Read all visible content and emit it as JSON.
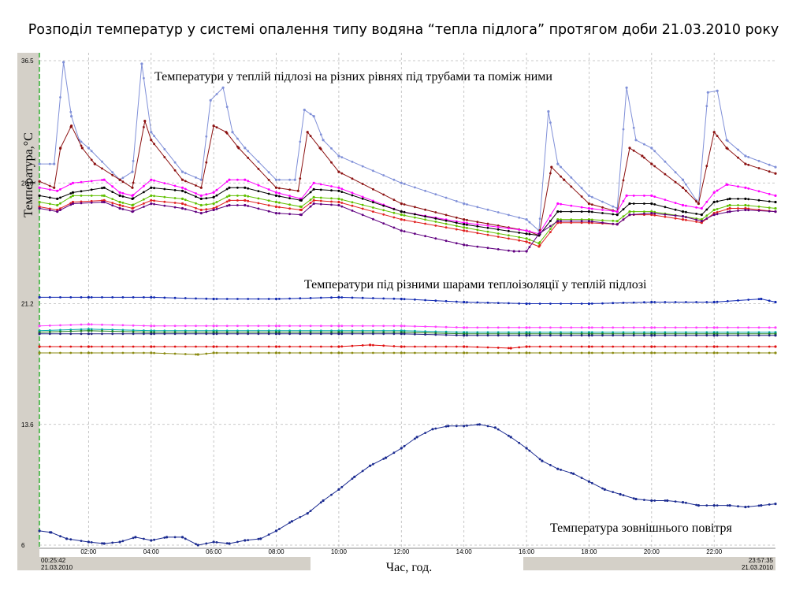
{
  "title": "Розподіл температур у системі опалення типу водяна “тепла підлога” протягом доби 21.03.2010 року",
  "chart_data": {
    "type": "line",
    "ylabel": "Температура,°С",
    "xlabel": "Час, год.",
    "ylim": [
      6,
      36.5
    ],
    "xlim": [
      0.4283,
      23.9597
    ],
    "y_ticks": [
      "36.5",
      "28.8",
      "21.2",
      "13.6",
      "6"
    ],
    "x_ticks": [
      "02:00",
      "04:00",
      "06:00",
      "08:00",
      "10:00",
      "12:00",
      "14:00",
      "16:00",
      "18:00",
      "20:00",
      "22:00"
    ],
    "grid": true,
    "start_label": {
      "time": "00:25:42",
      "date": "21.03.2010"
    },
    "end_label": {
      "time": "23:57:35",
      "date": "21.03.2010"
    },
    "annotations": {
      "floor": "Температури у теплій підлозі на різних рівнях під трубами та поміж ними",
      "insulation": "Температури під різними шарами теплоізоляції у теплій підлозі",
      "outdoor": "Температура зовнішнього повітря"
    },
    "series": [
      {
        "color": "#8090d8",
        "x": [
          0.43,
          0.9,
          1.2,
          1.45,
          1.7,
          2.0,
          3.0,
          3.4,
          3.7,
          4.0,
          5.0,
          5.6,
          5.9,
          6.3,
          6.6,
          7.0,
          8.0,
          8.6,
          8.9,
          9.2,
          9.5,
          10.0,
          12.0,
          14.0,
          16.0,
          16.4,
          16.7,
          17.0,
          18.0,
          18.9,
          19.2,
          19.5,
          20.0,
          21.0,
          21.5,
          21.8,
          22.1,
          22.4,
          23.0,
          23.96
        ],
        "values": [
          30.0,
          30.0,
          36.4,
          33.0,
          31.5,
          31.0,
          29.0,
          29.5,
          36.3,
          32.0,
          29.5,
          29.0,
          34.0,
          34.8,
          32.0,
          31.0,
          29.0,
          29.0,
          33.4,
          33.0,
          31.5,
          30.5,
          28.8,
          27.5,
          26.5,
          25.8,
          33.3,
          30.0,
          28.0,
          27.2,
          34.8,
          31.5,
          31.0,
          29.0,
          27.5,
          34.5,
          34.6,
          31.5,
          30.5,
          29.8
        ]
      },
      {
        "color": "#8b1010",
        "x": [
          0.43,
          0.9,
          1.1,
          1.45,
          1.8,
          2.2,
          3.0,
          3.4,
          3.8,
          4.0,
          5.0,
          5.6,
          6.0,
          6.4,
          6.8,
          8.0,
          8.7,
          9.0,
          9.4,
          10.0,
          12.0,
          14.0,
          16.0,
          16.4,
          16.8,
          17.2,
          18.0,
          18.9,
          19.3,
          19.7,
          20.0,
          21.0,
          21.5,
          22.0,
          22.4,
          23.0,
          23.96
        ],
        "values": [
          28.9,
          28.5,
          31.0,
          32.4,
          31.0,
          30.0,
          29.0,
          28.5,
          32.7,
          31.5,
          29.0,
          28.5,
          32.4,
          32.0,
          31.0,
          28.5,
          28.3,
          32.0,
          31.0,
          29.5,
          27.5,
          26.5,
          25.8,
          25.5,
          29.8,
          29.0,
          27.5,
          27.0,
          31.0,
          30.5,
          30.0,
          28.5,
          27.5,
          32.0,
          31.0,
          30.0,
          29.4
        ]
      },
      {
        "color": "#ff00ff",
        "x": [
          0.43,
          1.0,
          1.5,
          2.5,
          3.0,
          3.4,
          4.0,
          5.0,
          5.6,
          6.0,
          6.5,
          7.0,
          8.0,
          8.8,
          9.2,
          10.0,
          12.0,
          14.0,
          16.0,
          16.4,
          17.0,
          18.0,
          18.9,
          19.2,
          20.0,
          21.0,
          21.6,
          22.0,
          22.4,
          23.0,
          23.96
        ],
        "values": [
          28.5,
          28.3,
          28.8,
          29.0,
          28.2,
          28.0,
          29.0,
          28.5,
          28.0,
          28.2,
          29.0,
          29.0,
          28.2,
          27.8,
          28.8,
          28.5,
          27.0,
          26.3,
          25.8,
          25.6,
          27.5,
          27.2,
          27.0,
          28.0,
          28.0,
          27.4,
          27.2,
          28.2,
          28.7,
          28.5,
          28.0
        ]
      },
      {
        "color": "#000000",
        "x": [
          0.43,
          1.0,
          1.5,
          2.5,
          3.0,
          3.4,
          4.0,
          5.0,
          5.6,
          6.0,
          6.5,
          7.0,
          8.0,
          8.8,
          9.2,
          10.0,
          12.0,
          14.0,
          16.0,
          16.4,
          17.0,
          18.0,
          18.9,
          19.3,
          20.0,
          21.0,
          21.6,
          22.0,
          22.5,
          23.0,
          23.96
        ],
        "values": [
          28.0,
          27.8,
          28.2,
          28.5,
          28.0,
          27.8,
          28.5,
          28.3,
          27.8,
          27.9,
          28.5,
          28.5,
          28.0,
          27.7,
          28.4,
          28.3,
          27.0,
          26.2,
          25.6,
          25.5,
          27.0,
          27.0,
          26.8,
          27.5,
          27.5,
          27.0,
          26.8,
          27.6,
          27.8,
          27.8,
          27.6
        ]
      },
      {
        "color": "#60c000",
        "x": [
          0.43,
          1.0,
          1.5,
          2.5,
          3.0,
          3.4,
          4.0,
          5.0,
          5.6,
          6.0,
          6.5,
          7.0,
          8.0,
          8.8,
          9.2,
          10.0,
          12.0,
          14.0,
          16.0,
          16.4,
          17.0,
          18.0,
          18.9,
          19.3,
          20.0,
          21.0,
          21.6,
          22.0,
          22.5,
          23.0,
          23.96
        ],
        "values": [
          27.6,
          27.4,
          28.0,
          28.0,
          27.6,
          27.4,
          28.0,
          27.8,
          27.4,
          27.5,
          28.0,
          28.0,
          27.6,
          27.3,
          27.9,
          27.8,
          26.8,
          26.0,
          25.3,
          25.0,
          26.5,
          26.5,
          26.4,
          27.0,
          27.0,
          26.7,
          26.5,
          27.1,
          27.4,
          27.4,
          27.2
        ]
      },
      {
        "color": "#e02020",
        "x": [
          0.43,
          1.0,
          1.5,
          2.5,
          3.0,
          3.4,
          4.0,
          5.0,
          5.6,
          6.0,
          6.5,
          7.0,
          8.0,
          8.8,
          9.2,
          10.0,
          12.0,
          14.0,
          16.0,
          16.4,
          17.0,
          18.0,
          18.9,
          19.3,
          20.0,
          21.0,
          21.6,
          22.0,
          22.5,
          23.0,
          23.96
        ],
        "values": [
          27.3,
          27.1,
          27.6,
          27.7,
          27.4,
          27.2,
          27.7,
          27.5,
          27.1,
          27.2,
          27.7,
          27.7,
          27.3,
          27.1,
          27.7,
          27.6,
          26.5,
          25.8,
          25.1,
          24.8,
          26.3,
          26.3,
          26.2,
          26.8,
          26.8,
          26.5,
          26.3,
          26.9,
          27.2,
          27.2,
          27.0
        ]
      },
      {
        "color": "#600080",
        "x": [
          0.43,
          1.0,
          1.5,
          2.5,
          3.0,
          3.4,
          4.0,
          5.0,
          5.6,
          6.0,
          6.5,
          7.0,
          8.0,
          8.8,
          9.2,
          10.0,
          12.0,
          14.0,
          15.6,
          16.0,
          16.4,
          17.0,
          18.0,
          18.9,
          19.3,
          20.0,
          21.0,
          21.6,
          22.0,
          22.5,
          23.0,
          23.96
        ],
        "values": [
          27.2,
          27.0,
          27.5,
          27.6,
          27.2,
          27.0,
          27.5,
          27.2,
          26.9,
          27.1,
          27.4,
          27.4,
          26.9,
          26.8,
          27.5,
          27.4,
          25.8,
          24.9,
          24.5,
          24.5,
          25.6,
          26.4,
          26.4,
          26.2,
          26.8,
          26.9,
          26.7,
          26.4,
          26.8,
          27.0,
          27.1,
          27.0
        ]
      },
      {
        "color": "#1028b0",
        "x": [
          0.43,
          2.0,
          4.0,
          6.0,
          8.0,
          10.0,
          12.0,
          14.0,
          16.0,
          18.0,
          20.0,
          22.0,
          23.5,
          23.96
        ],
        "values": [
          21.6,
          21.6,
          21.6,
          21.5,
          21.5,
          21.6,
          21.5,
          21.3,
          21.2,
          21.2,
          21.3,
          21.3,
          21.5,
          21.3
        ]
      },
      {
        "color": "#ff40ff",
        "x": [
          0.43,
          2.0,
          4.0,
          6.0,
          8.0,
          10.0,
          12.0,
          14.0,
          16.0,
          18.0,
          20.0,
          22.0,
          23.96
        ],
        "values": [
          19.8,
          19.9,
          19.8,
          19.8,
          19.8,
          19.8,
          19.8,
          19.7,
          19.7,
          19.7,
          19.7,
          19.7,
          19.7
        ]
      },
      {
        "color": "#00a8a8",
        "x": [
          0.43,
          2.0,
          4.0,
          6.0,
          8.0,
          10.0,
          12.0,
          14.0,
          16.0,
          18.0,
          20.0,
          22.0,
          23.96
        ],
        "values": [
          19.5,
          19.6,
          19.5,
          19.5,
          19.5,
          19.5,
          19.5,
          19.4,
          19.4,
          19.4,
          19.4,
          19.4,
          19.4
        ]
      },
      {
        "color": "#208020",
        "x": [
          0.43,
          2.0,
          4.0,
          6.0,
          8.0,
          10.0,
          12.0,
          14.0,
          16.0,
          18.0,
          20.0,
          22.0,
          23.96
        ],
        "values": [
          19.4,
          19.5,
          19.4,
          19.4,
          19.4,
          19.4,
          19.4,
          19.3,
          19.3,
          19.3,
          19.3,
          19.3,
          19.3
        ]
      },
      {
        "color": "#202080",
        "x": [
          0.43,
          2.0,
          4.0,
          6.0,
          8.0,
          10.0,
          12.0,
          14.0,
          16.0,
          18.0,
          20.0,
          22.0,
          23.96
        ],
        "values": [
          19.3,
          19.3,
          19.3,
          19.3,
          19.3,
          19.3,
          19.3,
          19.2,
          19.2,
          19.2,
          19.2,
          19.2,
          19.2
        ]
      },
      {
        "color": "#e01010",
        "x": [
          0.43,
          2.0,
          4.0,
          6.0,
          8.0,
          10.0,
          11.0,
          12.0,
          14.0,
          15.5,
          16.0,
          18.0,
          20.0,
          22.0,
          23.96
        ],
        "values": [
          18.5,
          18.5,
          18.5,
          18.5,
          18.5,
          18.5,
          18.6,
          18.5,
          18.5,
          18.4,
          18.5,
          18.5,
          18.5,
          18.5,
          18.5
        ]
      },
      {
        "color": "#8a8a10",
        "x": [
          0.43,
          2.0,
          4.0,
          5.5,
          6.0,
          8.0,
          10.0,
          12.0,
          14.0,
          16.0,
          18.0,
          20.0,
          22.0,
          23.96
        ],
        "values": [
          18.1,
          18.1,
          18.1,
          18.0,
          18.1,
          18.1,
          18.1,
          18.1,
          18.1,
          18.1,
          18.1,
          18.1,
          18.1,
          18.1
        ]
      },
      {
        "color": "#1a2a90",
        "x": [
          0.43,
          0.8,
          1.3,
          2.0,
          2.5,
          3.0,
          3.5,
          4.0,
          4.5,
          5.0,
          5.5,
          6.0,
          6.5,
          7.0,
          7.5,
          8.0,
          8.5,
          9.0,
          9.5,
          10.0,
          10.5,
          11.0,
          11.5,
          12.0,
          12.5,
          13.0,
          13.5,
          14.0,
          14.5,
          15.0,
          15.5,
          16.0,
          16.5,
          17.0,
          17.5,
          18.0,
          18.5,
          19.0,
          19.5,
          20.0,
          20.5,
          21.0,
          21.5,
          22.0,
          22.5,
          23.0,
          23.5,
          23.96
        ],
        "values": [
          6.9,
          6.8,
          6.4,
          6.2,
          6.1,
          6.2,
          6.5,
          6.3,
          6.5,
          6.5,
          6.0,
          6.2,
          6.1,
          6.3,
          6.4,
          6.9,
          7.5,
          8.0,
          8.8,
          9.5,
          10.3,
          11.0,
          11.5,
          12.1,
          12.8,
          13.3,
          13.5,
          13.5,
          13.6,
          13.4,
          12.8,
          12.1,
          11.3,
          10.8,
          10.5,
          10.0,
          9.5,
          9.2,
          8.9,
          8.8,
          8.8,
          8.7,
          8.5,
          8.5,
          8.5,
          8.4,
          8.5,
          8.6
        ]
      }
    ]
  }
}
